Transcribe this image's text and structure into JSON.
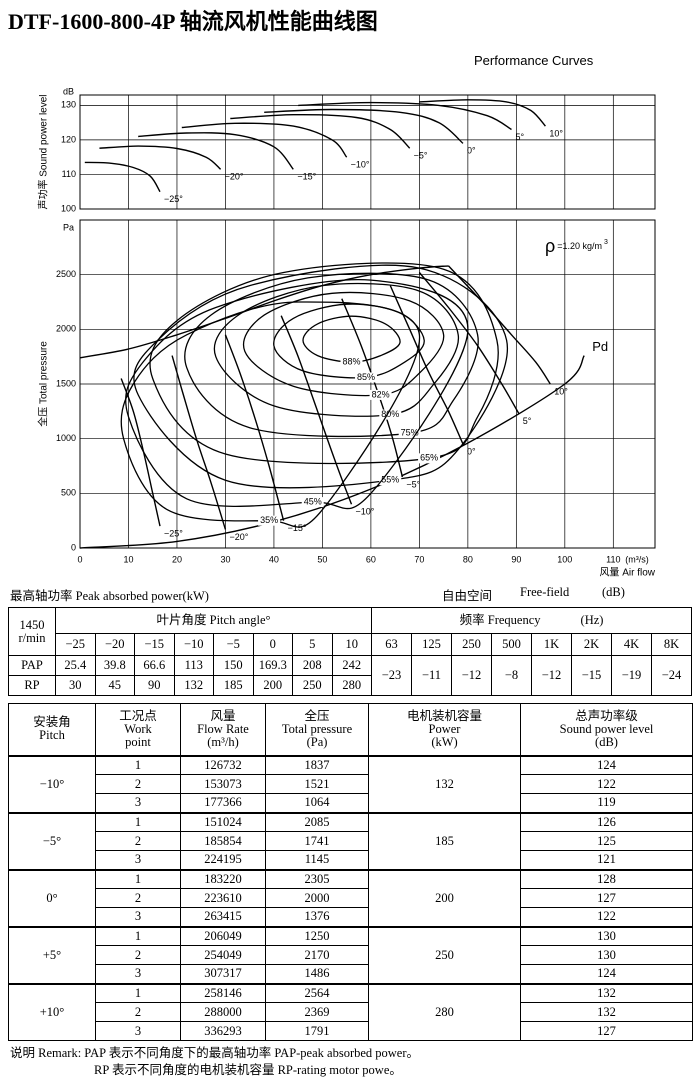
{
  "header": {
    "title": "DTF-1600-800-4P 轴流风机性能曲线图",
    "subtitle": "Performance Curves"
  },
  "chart_data": [
    {
      "type": "line",
      "ylabel": "声功率 Sound power level",
      "yunit": "dB",
      "xlim": [
        0,
        118.6
      ],
      "ylim": [
        100,
        133
      ],
      "xticks": [
        0,
        10,
        20,
        30,
        40,
        50,
        60,
        70,
        80,
        90,
        100,
        110
      ],
      "xtick_labels": false,
      "yticks": [
        100,
        110,
        120,
        130
      ],
      "grid": true,
      "series": [
        {
          "name": "−25°",
          "color": "#000000",
          "x": [
            1,
            6,
            11,
            14.5,
            16.5
          ],
          "values": [
            113.5,
            113.3,
            112,
            109.5,
            105
          ]
        },
        {
          "name": "−20°",
          "color": "#000000",
          "x": [
            4,
            12,
            20,
            26,
            29
          ],
          "values": [
            117.6,
            118.2,
            117.5,
            115,
            111.5
          ]
        },
        {
          "name": "−15°",
          "color": "#000000",
          "x": [
            12,
            22,
            32,
            40,
            44
          ],
          "values": [
            121,
            122,
            121.5,
            118,
            111.5
          ]
        },
        {
          "name": "−10°",
          "color": "#000000",
          "x": [
            21,
            32,
            44,
            52,
            55
          ],
          "values": [
            123.6,
            124.8,
            124,
            120,
            115
          ]
        },
        {
          "name": "−5°",
          "color": "#000000",
          "x": [
            31,
            44,
            57,
            64,
            68
          ],
          "values": [
            126.2,
            127.3,
            126.5,
            123,
            117.6
          ]
        },
        {
          "name": "0°",
          "color": "#000000",
          "x": [
            38,
            52,
            66,
            74,
            79
          ],
          "values": [
            128,
            128.8,
            128,
            125,
            119
          ]
        },
        {
          "name": "5°",
          "color": "#000000",
          "x": [
            45,
            60,
            74,
            84,
            89
          ],
          "values": [
            130,
            130.8,
            130,
            127,
            123
          ]
        },
        {
          "name": "10°",
          "color": "#000000",
          "x": [
            70,
            80,
            88,
            93,
            96
          ],
          "values": [
            131,
            131.6,
            131,
            128.5,
            124
          ]
        }
      ]
    },
    {
      "type": "line",
      "ylabel": "全压 Total pressure",
      "yunit": "Pa",
      "xlabel": "风量 Air flow",
      "xunit": "(m³/s)",
      "annotation": {
        "symbol": "ρ",
        "text": "=1.20 kg/m",
        "sup": "3"
      },
      "xlim": [
        0,
        118.6
      ],
      "ylim": [
        0,
        3000
      ],
      "xticks": [
        0,
        10,
        20,
        30,
        40,
        50,
        60,
        70,
        80,
        90,
        100,
        110
      ],
      "xtick_labels": true,
      "yticks": [
        0,
        500,
        1000,
        1500,
        2000,
        2500
      ],
      "grid": true,
      "series": [
        {
          "name": "−25°",
          "color": "#000000",
          "x": [
            8.5,
            11,
            13,
            15,
            16.5
          ],
          "values": [
            1550,
            1250,
            900,
            500,
            200
          ]
        },
        {
          "name": "−20°",
          "color": "#000000",
          "x": [
            19,
            21,
            24,
            27,
            30
          ],
          "values": [
            1760,
            1450,
            1000,
            600,
            170
          ]
        },
        {
          "name": "−15°",
          "color": "#000000",
          "x": [
            30,
            33,
            36,
            39,
            42
          ],
          "values": [
            1950,
            1600,
            1200,
            750,
            250
          ]
        },
        {
          "name": "−10°",
          "color": "#000000",
          "x": [
            41.5,
            45,
            49,
            53,
            56
          ],
          "values": [
            2125,
            1750,
            1250,
            750,
            400
          ]
        },
        {
          "name": "−5°",
          "color": "#000000",
          "x": [
            54,
            58,
            62,
            64.5,
            66.5
          ],
          "values": [
            2280,
            1850,
            1350,
            1000,
            650
          ]
        },
        {
          "name": "0°",
          "color": "#000000",
          "x": [
            64,
            68,
            72,
            76,
            79
          ],
          "values": [
            2400,
            2000,
            1600,
            1250,
            950
          ]
        },
        {
          "name": "5°",
          "color": "#000000",
          "x": [
            70,
            76,
            82,
            87,
            90.5
          ],
          "values": [
            2520,
            2200,
            1850,
            1500,
            1230
          ]
        },
        {
          "name": "10°",
          "color": "#000000",
          "x": [
            76,
            83,
            89,
            94,
            97
          ],
          "values": [
            2580,
            2250,
            1950,
            1700,
            1500
          ]
        },
        {
          "name": "Pd",
          "color": "#000000",
          "x": [
            0,
            20,
            40,
            60,
            80,
            100,
            104
          ],
          "values": [
            0,
            60,
            240,
            540,
            960,
            1500,
            1760
          ]
        },
        {
          "color": "#000000",
          "x": [
            0,
            10,
            20,
            30,
            40,
            50,
            60,
            70,
            76
          ],
          "values": [
            1740,
            1820,
            1950,
            2100,
            2260,
            2400,
            2500,
            2560,
            2580
          ]
        }
      ],
      "contours": [
        {
          "name": "88%",
          "x": [
            46,
            49,
            56,
            63,
            66,
            62,
            56,
            49
          ],
          "values": [
            1900,
            2050,
            2120,
            2050,
            1880,
            1760,
            1700,
            1760
          ]
        },
        {
          "name": "85%",
          "x": [
            40,
            44,
            55,
            66,
            71,
            67,
            59,
            46
          ],
          "values": [
            1850,
            2100,
            2230,
            2150,
            1900,
            1700,
            1560,
            1620
          ]
        },
        {
          "name": "82%",
          "x": [
            34,
            38,
            52,
            68,
            75,
            70,
            62,
            44
          ],
          "values": [
            1800,
            2130,
            2330,
            2260,
            1950,
            1600,
            1400,
            1480
          ]
        },
        {
          "name": "80%",
          "x": [
            28,
            33,
            50,
            70,
            78,
            73,
            64,
            40
          ],
          "values": [
            1750,
            2140,
            2400,
            2350,
            1950,
            1500,
            1220,
            1300
          ]
        },
        {
          "name": "75%",
          "x": [
            22,
            27,
            47,
            72,
            82,
            77,
            68,
            35
          ],
          "values": [
            1650,
            2130,
            2470,
            2450,
            1950,
            1350,
            1050,
            1100
          ]
        },
        {
          "name": "65%",
          "x": [
            15,
            20,
            42,
            75,
            86,
            82,
            72,
            30
          ],
          "values": [
            1550,
            2080,
            2520,
            2550,
            1900,
            1200,
            820,
            860
          ]
        },
        {
          "name": "55%",
          "x": [
            12,
            16,
            35,
            70,
            88,
            78,
            64,
            30
          ],
          "values": [
            1400,
            1900,
            2400,
            2560,
            1900,
            900,
            620,
            620
          ]
        },
        {
          "name": "45%",
          "x": [
            10,
            13,
            28,
            60,
            80,
            60,
            48,
            22
          ],
          "values": [
            1200,
            1700,
            2200,
            2450,
            2000,
            500,
            420,
            450
          ]
        },
        {
          "name": "35%",
          "x": [
            9,
            11,
            22,
            45,
            70,
            50,
            39,
            18
          ],
          "values": [
            1000,
            1500,
            1950,
            2250,
            1950,
            350,
            250,
            350
          ]
        }
      ]
    }
  ],
  "perf_table": {
    "title_left": "最高轴功率 Peak absorbed power(kW)",
    "title_right": [
      "自由空间",
      "Free-field",
      "(dB)"
    ],
    "speed": [
      "1450",
      "r/min"
    ],
    "pitch_header": "叶片角度 Pitch angle°",
    "freq_header": [
      "频率 Frequency",
      "(Hz)"
    ],
    "pitch_angles": [
      "−25",
      "−20",
      "−15",
      "−10",
      "−5",
      "0",
      "5",
      "10"
    ],
    "frequencies": [
      "63",
      "125",
      "250",
      "500",
      "1K",
      "2K",
      "4K",
      "8K"
    ],
    "rows": [
      {
        "label": "PAP",
        "values": [
          "25.4",
          "39.8",
          "66.6",
          "113",
          "150",
          "169.3",
          "208",
          "242"
        ]
      },
      {
        "label": "RP",
        "values": [
          "30",
          "45",
          "90",
          "132",
          "185",
          "200",
          "250",
          "280"
        ]
      }
    ],
    "sound_levels": [
      "−23",
      "−11",
      "−12",
      "−8",
      "−12",
      "−15",
      "−19",
      "−24"
    ]
  },
  "op_table": {
    "headers": [
      [
        "安装角",
        "Pitch"
      ],
      [
        "工况点",
        "Work",
        "point"
      ],
      [
        "风量",
        "Flow Rate",
        "(m³/h)"
      ],
      [
        "全压",
        "Total pressure",
        "(Pa)"
      ],
      [
        "电机装机容量",
        "Power",
        "(kW)"
      ],
      [
        "总声功率级",
        "Sound power level",
        "(dB)"
      ]
    ],
    "groups": [
      {
        "pitch": "−10°",
        "power": "132",
        "points": [
          [
            "1",
            "126732",
            "1837",
            "124"
          ],
          [
            "2",
            "153073",
            "1521",
            "122"
          ],
          [
            "3",
            "177366",
            "1064",
            "119"
          ]
        ]
      },
      {
        "pitch": "−5°",
        "power": "185",
        "points": [
          [
            "1",
            "151024",
            "2085",
            "126"
          ],
          [
            "2",
            "185854",
            "1741",
            "125"
          ],
          [
            "3",
            "224195",
            "1145",
            "121"
          ]
        ]
      },
      {
        "pitch": "0°",
        "power": "200",
        "points": [
          [
            "1",
            "183220",
            "2305",
            "128"
          ],
          [
            "2",
            "223610",
            "2000",
            "127"
          ],
          [
            "3",
            "263415",
            "1376",
            "122"
          ]
        ]
      },
      {
        "pitch": "+5°",
        "power": "250",
        "points": [
          [
            "1",
            "206049",
            "1250",
            "130"
          ],
          [
            "2",
            "254049",
            "2170",
            "130"
          ],
          [
            "3",
            "307317",
            "1486",
            "124"
          ]
        ]
      },
      {
        "pitch": "+10°",
        "power": "280",
        "points": [
          [
            "1",
            "258146",
            "2564",
            "132"
          ],
          [
            "2",
            "288000",
            "2369",
            "132"
          ],
          [
            "3",
            "336293",
            "1791",
            "127"
          ]
        ]
      }
    ]
  },
  "remark": [
    "说明 Remark: PAP 表示不同角度下的最高轴功率 PAP-peak absorbed power。",
    "RP 表示不同角度的电机装机容量 RP-rating motor powe。"
  ]
}
